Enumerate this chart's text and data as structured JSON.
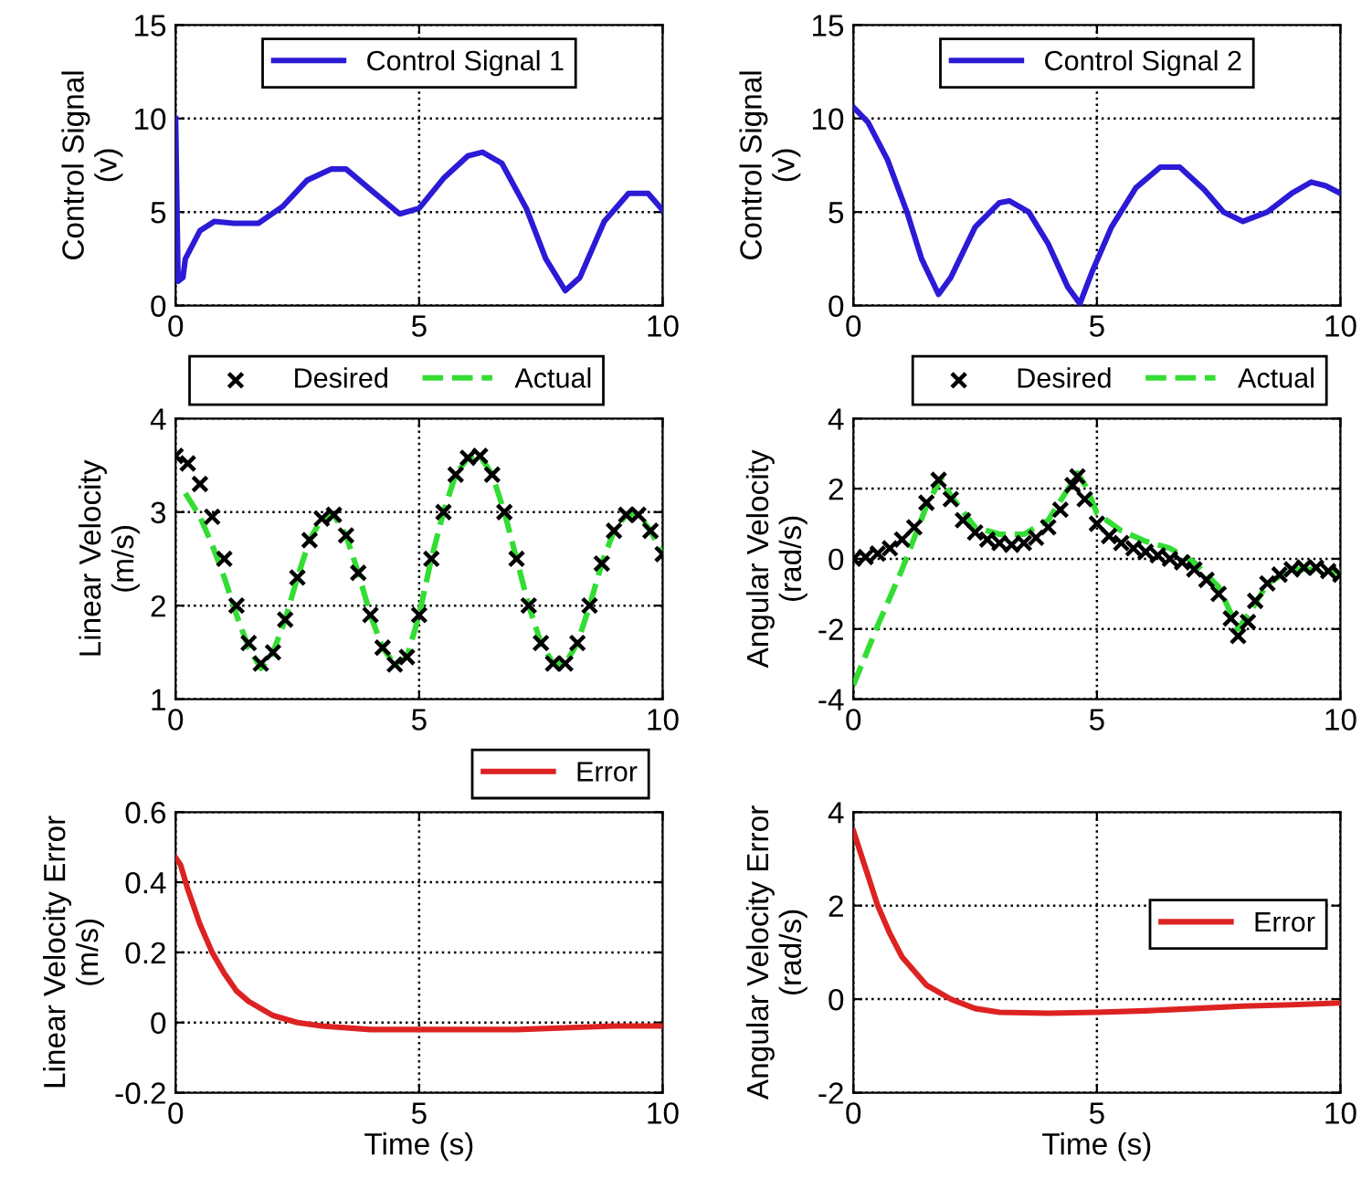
{
  "chart_data": [
    {
      "type": "line",
      "ylabel": "Control Signal\n(v)",
      "xlim": [
        0,
        10
      ],
      "ylim": [
        0,
        15
      ],
      "xticks": [
        0,
        5,
        10
      ],
      "yticks": [
        0,
        5,
        10,
        15
      ],
      "grid": true,
      "legend": "top",
      "series": [
        {
          "name": "Control Signal 1",
          "color": "#2b1bd6",
          "line_style": "solid",
          "marker": "none",
          "x": [
            0,
            0.02,
            0.05,
            0.15,
            0.2,
            0.5,
            0.8,
            1.2,
            1.7,
            2.2,
            2.7,
            3.2,
            3.5,
            4,
            4.6,
            5,
            5.5,
            6,
            6.3,
            6.7,
            7.2,
            7.6,
            8,
            8.3,
            8.8,
            9.3,
            9.7,
            10
          ],
          "values": [
            10,
            6.5,
            1.3,
            1.5,
            2.5,
            4,
            4.5,
            4.4,
            4.4,
            5.3,
            6.7,
            7.3,
            7.3,
            6.2,
            4.9,
            5.2,
            6.8,
            8,
            8.2,
            7.6,
            5.2,
            2.5,
            0.8,
            1.5,
            4.5,
            6,
            6,
            5.1
          ]
        }
      ]
    },
    {
      "type": "line",
      "ylabel": "Control Signal\n(v)",
      "xlim": [
        0,
        10
      ],
      "ylim": [
        0,
        15
      ],
      "xticks": [
        0,
        5,
        10
      ],
      "yticks": [
        0,
        5,
        10,
        15
      ],
      "grid": true,
      "legend": "top",
      "series": [
        {
          "name": "Control Signal 2",
          "color": "#2b1bd6",
          "line_style": "solid",
          "marker": "none",
          "x": [
            0,
            0.3,
            0.7,
            1.1,
            1.4,
            1.75,
            2,
            2.5,
            3,
            3.2,
            3.6,
            4,
            4.4,
            4.65,
            4.9,
            5.3,
            5.8,
            6.3,
            6.7,
            7.2,
            7.6,
            8,
            8.5,
            9,
            9.4,
            9.7,
            10
          ],
          "values": [
            10.6,
            9.8,
            7.8,
            5,
            2.5,
            0.6,
            1.5,
            4.2,
            5.5,
            5.6,
            5,
            3.3,
            1,
            0.1,
            1.8,
            4.2,
            6.3,
            7.4,
            7.4,
            6.2,
            5,
            4.5,
            5,
            6,
            6.6,
            6.4,
            6
          ]
        }
      ]
    },
    {
      "type": "line",
      "ylabel": "Linear Velocity\n(m/s)",
      "xlim": [
        0,
        10
      ],
      "ylim": [
        1,
        4
      ],
      "xticks": [
        0,
        5,
        10
      ],
      "yticks": [
        1,
        2,
        3,
        4
      ],
      "grid": true,
      "legend": "top left",
      "series": [
        {
          "name": "Desired",
          "type": "scatter",
          "color": "#000000",
          "marker": "cross",
          "x": [
            0,
            0.25,
            0.5,
            0.75,
            1,
            1.25,
            1.5,
            1.75,
            2,
            2.25,
            2.5,
            2.75,
            3,
            3.25,
            3.5,
            3.75,
            4,
            4.25,
            4.5,
            4.75,
            5,
            5.25,
            5.5,
            5.75,
            6,
            6.25,
            6.5,
            6.75,
            7,
            7.25,
            7.5,
            7.75,
            8,
            8.25,
            8.5,
            8.75,
            9,
            9.25,
            9.5,
            9.75,
            10
          ],
          "values": [
            3.6,
            3.52,
            3.3,
            2.95,
            2.5,
            2.0,
            1.6,
            1.38,
            1.5,
            1.85,
            2.3,
            2.7,
            2.93,
            2.97,
            2.75,
            2.35,
            1.9,
            1.55,
            1.37,
            1.45,
            1.9,
            2.5,
            3.0,
            3.4,
            3.58,
            3.6,
            3.4,
            3.0,
            2.5,
            2.0,
            1.6,
            1.38,
            1.38,
            1.6,
            2.0,
            2.45,
            2.8,
            2.97,
            2.97,
            2.8,
            2.55
          ]
        },
        {
          "name": "Actual",
          "type": "line",
          "color": "#33dd33",
          "line_style": "dashed",
          "marker": "none",
          "x": [
            0.2,
            0.5,
            0.75,
            1,
            1.25,
            1.5,
            1.75,
            2,
            2.25,
            2.5,
            2.75,
            3,
            3.25,
            3.5,
            3.75,
            4,
            4.25,
            4.5,
            4.75,
            5,
            5.25,
            5.5,
            5.75,
            6,
            6.25,
            6.5,
            6.75,
            7,
            7.25,
            7.5,
            7.75,
            8,
            8.25,
            8.5,
            8.75,
            9,
            9.25,
            9.5,
            9.75,
            10
          ],
          "values": [
            3.2,
            2.95,
            2.65,
            2.3,
            1.9,
            1.55,
            1.33,
            1.5,
            1.85,
            2.3,
            2.7,
            2.93,
            2.97,
            2.75,
            2.35,
            1.9,
            1.55,
            1.37,
            1.45,
            1.9,
            2.5,
            3.0,
            3.4,
            3.58,
            3.6,
            3.4,
            3.0,
            2.5,
            2.0,
            1.6,
            1.38,
            1.38,
            1.6,
            2.0,
            2.45,
            2.8,
            2.97,
            2.97,
            2.8,
            2.55
          ]
        }
      ]
    },
    {
      "type": "line",
      "ylabel": "Angular Velocity\n(rad/s)",
      "xlim": [
        0,
        10
      ],
      "ylim": [
        -4,
        4
      ],
      "xticks": [
        0,
        5,
        10
      ],
      "yticks": [
        -4,
        -2,
        0,
        2,
        4
      ],
      "grid": true,
      "legend": "top right",
      "series": [
        {
          "name": "Desired",
          "type": "scatter",
          "color": "#000000",
          "marker": "cross",
          "x": [
            0,
            0.25,
            0.5,
            0.75,
            1,
            1.25,
            1.5,
            1.75,
            2,
            2.25,
            2.5,
            2.75,
            3,
            3.25,
            3.5,
            3.75,
            4,
            4.25,
            4.5,
            4.6,
            4.75,
            5,
            5.25,
            5.5,
            5.75,
            6,
            6.25,
            6.5,
            6.75,
            7,
            7.25,
            7.5,
            7.75,
            7.9,
            8.1,
            8.25,
            8.5,
            8.75,
            9,
            9.25,
            9.5,
            9.75,
            10
          ],
          "values": [
            0,
            0.05,
            0.15,
            0.3,
            0.55,
            0.9,
            1.6,
            2.25,
            1.7,
            1.1,
            0.75,
            0.55,
            0.45,
            0.4,
            0.45,
            0.6,
            0.9,
            1.4,
            2.1,
            2.35,
            1.7,
            1.0,
            0.65,
            0.45,
            0.3,
            0.2,
            0.1,
            0.0,
            -0.1,
            -0.3,
            -0.6,
            -1.0,
            -1.7,
            -2.2,
            -1.8,
            -1.2,
            -0.7,
            -0.45,
            -0.3,
            -0.25,
            -0.25,
            -0.35,
            -0.45
          ]
        },
        {
          "name": "Actual",
          "type": "line",
          "color": "#33dd33",
          "line_style": "dashed",
          "marker": "none",
          "x": [
            0,
            0.5,
            1,
            1.5,
            1.8,
            2,
            2.5,
            3,
            3.5,
            4,
            4.5,
            4.6,
            4.8,
            5,
            5.5,
            6,
            6.5,
            7,
            7.5,
            7.9,
            8.2,
            8.5,
            9,
            9.5,
            10
          ],
          "values": [
            -3.6,
            -1.9,
            -0.3,
            1.5,
            2.3,
            1.8,
            0.9,
            0.7,
            0.7,
            1.1,
            2.2,
            2.45,
            2.0,
            1.3,
            0.8,
            0.5,
            0.3,
            -0.1,
            -0.8,
            -2.0,
            -1.4,
            -0.7,
            -0.3,
            -0.3,
            -0.4
          ]
        }
      ]
    },
    {
      "type": "line",
      "ylabel": "Linear Velocity Error\n(m/s)",
      "xlabel": "Time (s)",
      "xlim": [
        0,
        10
      ],
      "ylim": [
        -0.2,
        0.6
      ],
      "xticks": [
        0,
        5,
        10
      ],
      "yticks": [
        -0.2,
        0,
        0.2,
        0.4,
        0.6
      ],
      "grid": true,
      "legend": "top right",
      "series": [
        {
          "name": "Error",
          "color": "#dd2222",
          "line_style": "solid",
          "marker": "none",
          "x": [
            0,
            0.1,
            0.25,
            0.5,
            0.75,
            1,
            1.25,
            1.5,
            2,
            2.5,
            3,
            4,
            5,
            6,
            7,
            8,
            9,
            10
          ],
          "values": [
            0.47,
            0.45,
            0.38,
            0.28,
            0.2,
            0.14,
            0.09,
            0.06,
            0.02,
            0.0,
            -0.01,
            -0.02,
            -0.02,
            -0.02,
            -0.02,
            -0.015,
            -0.01,
            -0.01
          ]
        }
      ]
    },
    {
      "type": "line",
      "ylabel": "Angular Velocity Error\n(rad/s)",
      "xlabel": "Time (s)",
      "xlim": [
        0,
        10
      ],
      "ylim": [
        -2,
        4
      ],
      "xticks": [
        0,
        5,
        10
      ],
      "yticks": [
        -2,
        0,
        2,
        4
      ],
      "grid": true,
      "legend": "right",
      "series": [
        {
          "name": "Error",
          "color": "#dd2222",
          "line_style": "solid",
          "marker": "none",
          "x": [
            0,
            0.25,
            0.5,
            0.75,
            1,
            1.5,
            2,
            2.5,
            3,
            4,
            5,
            6,
            7,
            8,
            9,
            10
          ],
          "values": [
            3.6,
            2.8,
            2.0,
            1.4,
            0.9,
            0.3,
            0.0,
            -0.2,
            -0.28,
            -0.3,
            -0.28,
            -0.25,
            -0.2,
            -0.15,
            -0.12,
            -0.08
          ]
        }
      ]
    }
  ]
}
